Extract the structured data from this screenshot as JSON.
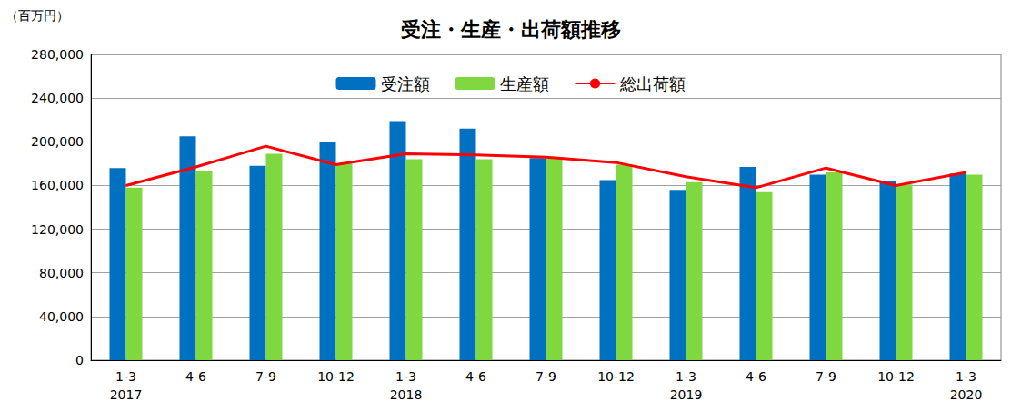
{
  "chart_data": {
    "type": "bar",
    "title": "受注・生産・出荷額推移",
    "y_label": "（百万円）",
    "categories": [
      "1-3\n2017",
      "4-6",
      "7-9",
      "10-12",
      "1-3\n2018",
      "4-6",
      "7-9",
      "10-12",
      "1-3\n2019",
      "4-6",
      "7-9",
      "10-12",
      "1-3\n2020"
    ],
    "series": [
      {
        "name": "受注額",
        "type": "bar",
        "color": "#0070c0",
        "values": [
          176000,
          205000,
          178000,
          200000,
          219000,
          212000,
          185000,
          165000,
          156000,
          177000,
          170000,
          164000,
          171000
        ]
      },
      {
        "name": "生産額",
        "type": "bar",
        "color": "#80d840",
        "values": [
          158000,
          173000,
          189000,
          180000,
          184000,
          184000,
          185000,
          179000,
          163000,
          154000,
          172000,
          161000,
          170000
        ]
      },
      {
        "name": "総出荷額",
        "type": "line",
        "color": "#ff0000",
        "marker": "none",
        "line_style": "solid",
        "values": [
          160000,
          177000,
          196000,
          179000,
          189000,
          188000,
          186000,
          181000,
          168000,
          158000,
          176000,
          160000,
          172000
        ]
      }
    ],
    "ylim": [
      0,
      280000
    ],
    "yticks": [
      0,
      {
        "value": 40000,
        "label": "40,000"
      },
      {
        "value": 80000,
        "label": "80,000"
      },
      {
        "value": 120000,
        "label": "120,000"
      },
      {
        "value": 160000,
        "label": "160,000"
      },
      {
        "value": 200000,
        "label": "200,000"
      },
      {
        "value": 240000,
        "label": "240,000"
      },
      {
        "value": 280000,
        "label": "280,000"
      }
    ],
    "grid": true,
    "legend": "top"
  }
}
